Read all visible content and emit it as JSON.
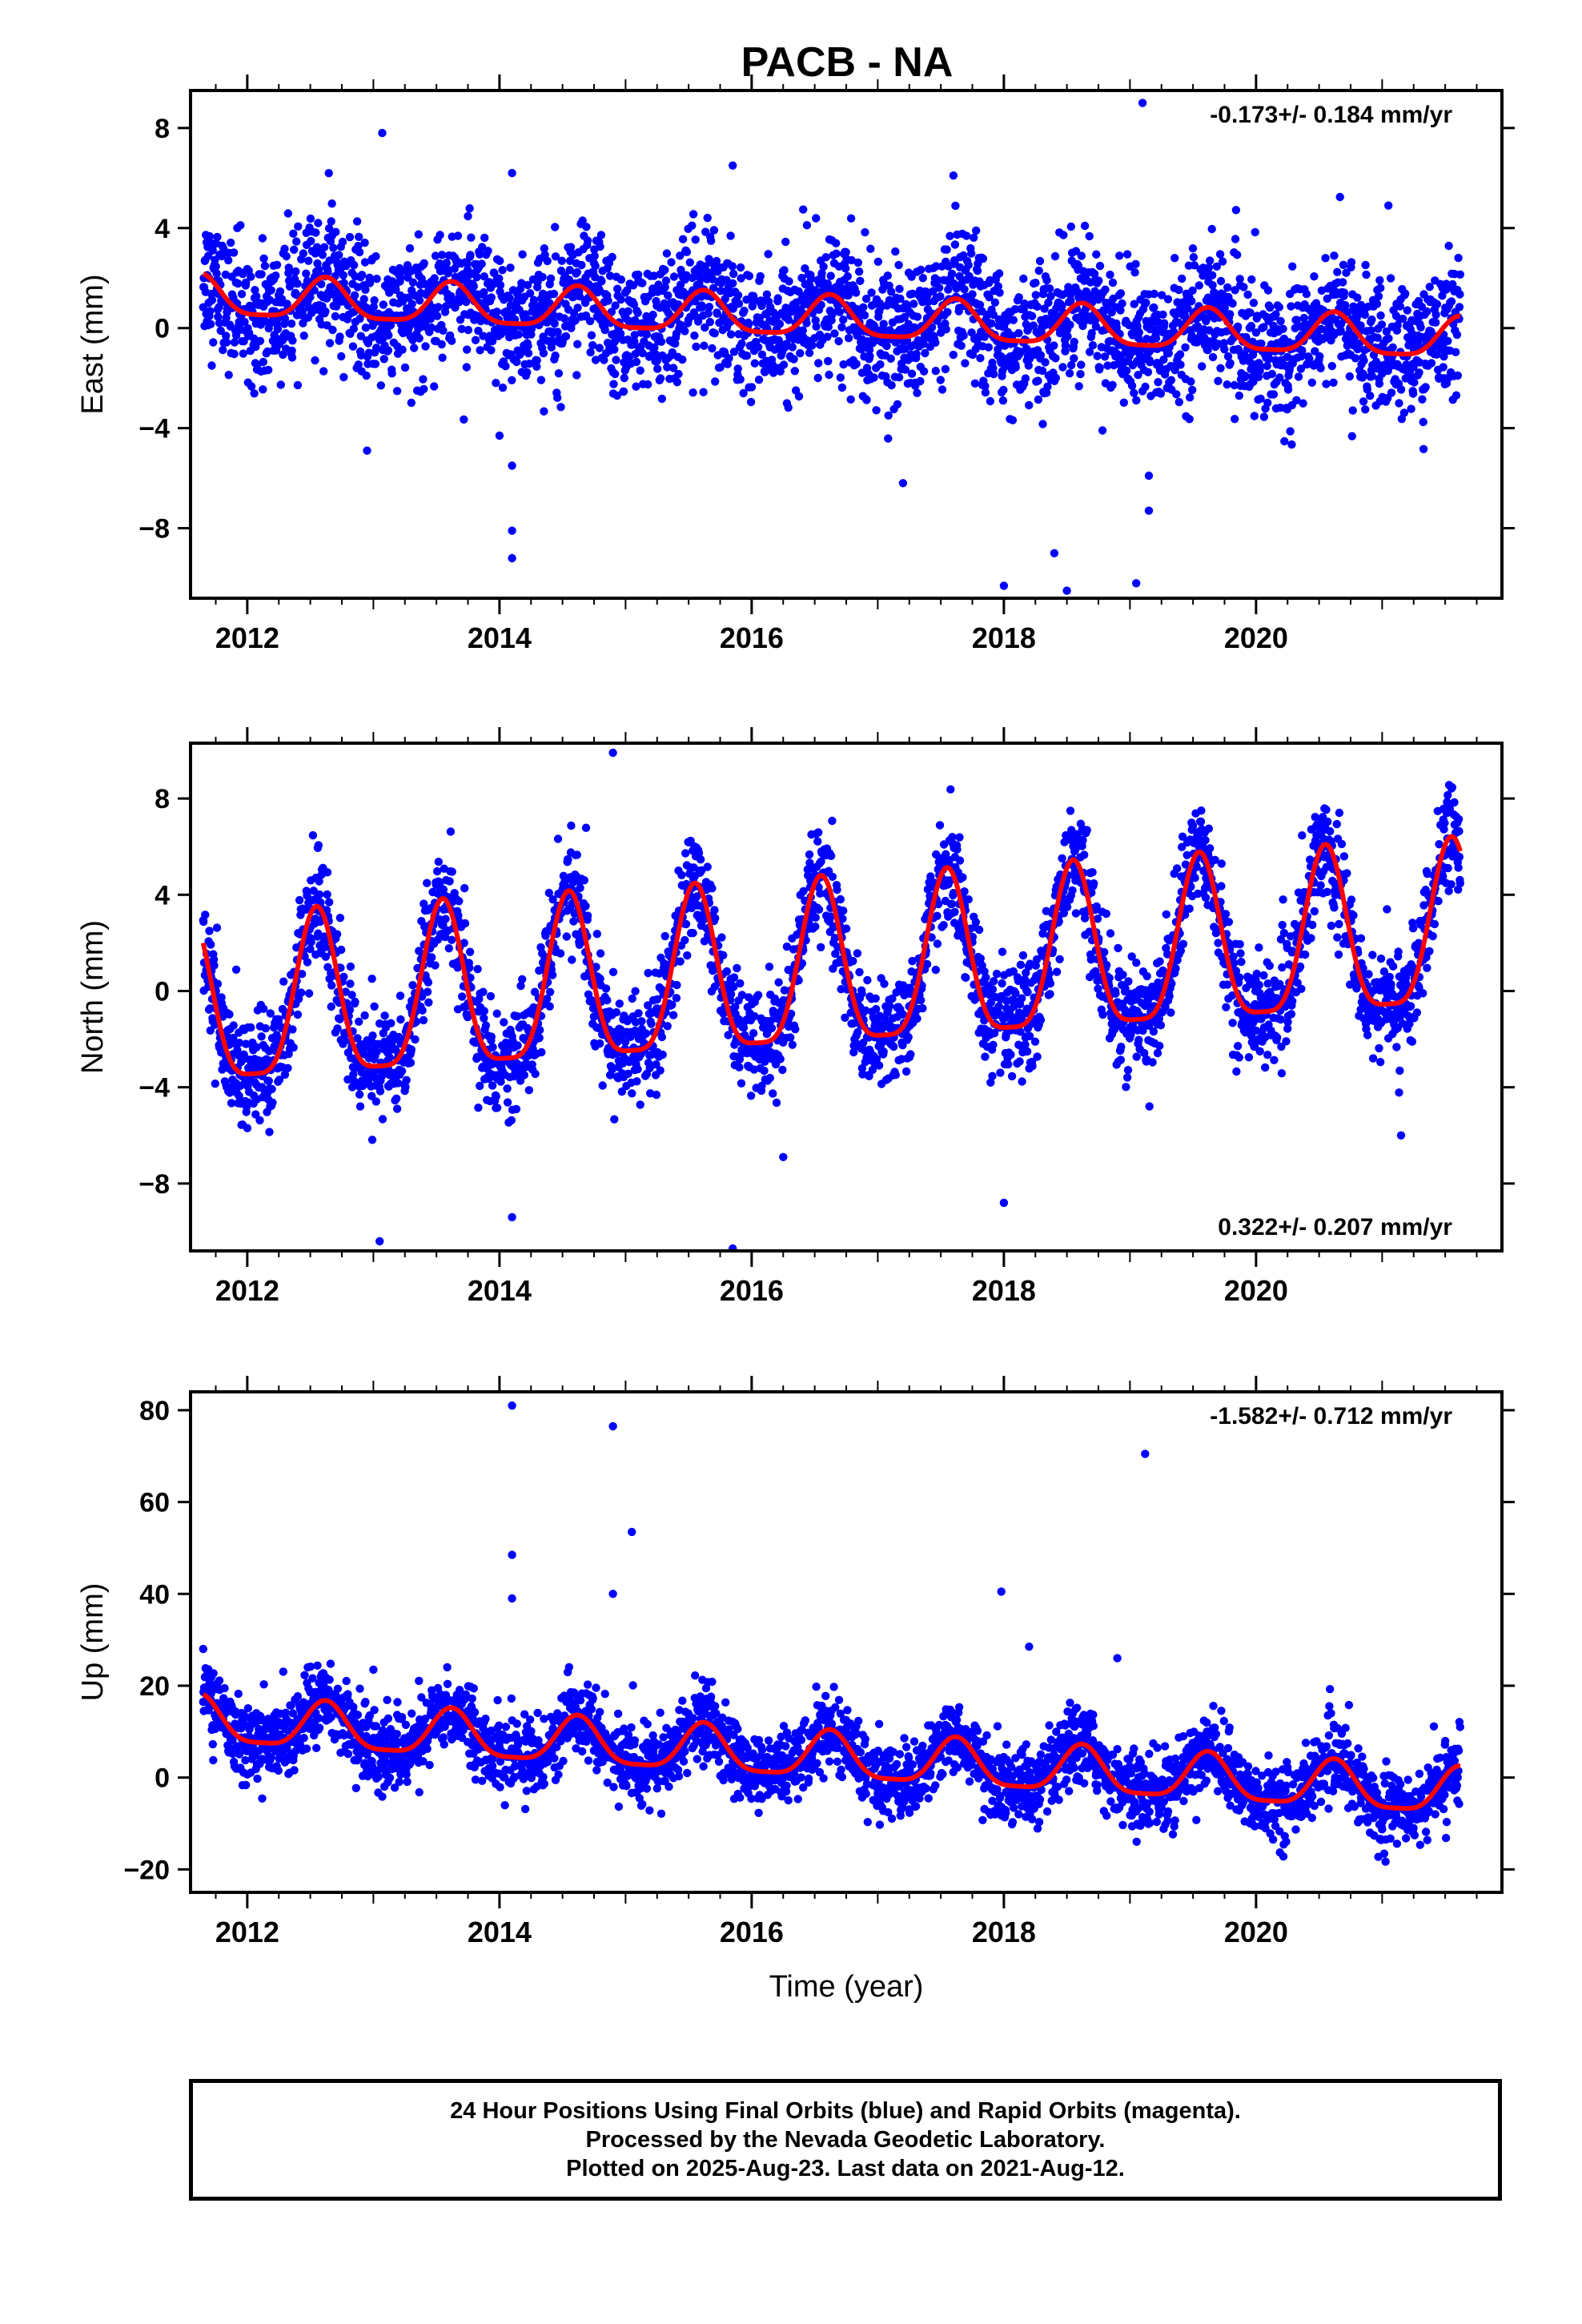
{
  "title": "PACB - NA",
  "colors": {
    "points": "#0000ff",
    "fit": "#ff0000",
    "frame": "#000000"
  },
  "chart_data": [
    {
      "type": "scatter",
      "panel": "east",
      "ylabel": "East (mm)",
      "xlim": [
        2011.55,
        2021.95
      ],
      "ylim": [
        -10.8,
        9.5
      ],
      "yticks": [
        -8,
        -4,
        0,
        4,
        8
      ],
      "yticklabels": [
        "−8",
        "−4",
        "0",
        "4",
        "8"
      ],
      "xticks": [
        2012,
        2014,
        2016,
        2018,
        2020
      ],
      "xticklabels": [
        "2012",
        "2014",
        "2016",
        "2018",
        "2020"
      ],
      "rate_label": "-0.173+/- 0.184 mm/yr",
      "rate_position": "top-right",
      "series": [
        {
          "values_note": ""
        }
      ],
      "trend_mm_per_yr": -0.173,
      "seasonal": {
        "mean_at_2011_7": 1.2,
        "annual_amp": 0.8,
        "annual_phase_peak": 0.62,
        "noise_sd": 1.3
      },
      "outliers": [
        [
          2013.07,
          7.8
        ],
        [
          2014.1,
          6.2
        ],
        [
          2015.85,
          6.5
        ],
        [
          2017.6,
          6.1
        ],
        [
          2019.1,
          9.0
        ],
        [
          2021.05,
          4.9
        ],
        [
          2014.1,
          -9.2
        ],
        [
          2014.1,
          -8.1
        ],
        [
          2014.1,
          -5.5
        ],
        [
          2014.0,
          -4.3
        ],
        [
          2012.95,
          -4.9
        ],
        [
          2017.2,
          -6.2
        ],
        [
          2018.0,
          -10.3
        ],
        [
          2018.4,
          -9.0
        ],
        [
          2018.5,
          -10.5
        ],
        [
          2019.05,
          -10.2
        ],
        [
          2019.15,
          -5.9
        ],
        [
          2019.15,
          -7.3
        ]
      ]
    },
    {
      "type": "scatter",
      "panel": "north",
      "ylabel": "North (mm)",
      "xlim": [
        2011.55,
        2021.95
      ],
      "ylim": [
        -10.8,
        10.3
      ],
      "yticks": [
        -8,
        -4,
        0,
        4,
        8
      ],
      "yticklabels": [
        "−8",
        "−4",
        "0",
        "4",
        "8"
      ],
      "xticks": [
        2012,
        2014,
        2016,
        2018,
        2020
      ],
      "xticklabels": [
        "2012",
        "2014",
        "2016",
        "2018",
        "2020"
      ],
      "rate_label": "0.322+/- 0.207 mm/yr",
      "rate_position": "bottom-right",
      "trend_mm_per_yr": 0.322,
      "seasonal": {
        "mean_at_2011_7": -1.0,
        "annual_amp": 3.4,
        "annual_phase_peak": 0.55,
        "noise_sd": 1.1
      },
      "outliers": [
        [
          2014.9,
          9.9
        ],
        [
          2013.05,
          -10.4
        ],
        [
          2015.85,
          -10.7
        ],
        [
          2018.0,
          -8.8
        ],
        [
          2014.1,
          -9.4
        ],
        [
          2016.25,
          -6.9
        ],
        [
          2021.15,
          -6.0
        ]
      ]
    },
    {
      "type": "scatter",
      "panel": "up",
      "ylabel": "Up (mm)",
      "xlim": [
        2011.55,
        2021.95
      ],
      "ylim": [
        -25,
        84
      ],
      "yticks": [
        -20,
        0,
        20,
        40,
        60,
        80
      ],
      "yticklabels": [
        "−20",
        "0",
        "20",
        "40",
        "60",
        "80"
      ],
      "xticks": [
        2012,
        2014,
        2016,
        2018,
        2020
      ],
      "xticklabels": [
        "2012",
        "2014",
        "2016",
        "2018",
        "2020"
      ],
      "xlabel": "Time (year)",
      "rate_label": "-1.582+/- 0.712 mm/yr",
      "rate_position": "top-right",
      "trend_mm_per_yr": -1.582,
      "seasonal": {
        "mean_at_2011_7": 12.0,
        "annual_amp": 5.0,
        "annual_phase_peak": 0.62,
        "noise_sd": 4.0
      },
      "outliers": [
        [
          2014.1,
          81
        ],
        [
          2014.1,
          48.5
        ],
        [
          2014.1,
          39
        ],
        [
          2014.9,
          76.5
        ],
        [
          2014.9,
          40
        ],
        [
          2015.05,
          53.5
        ],
        [
          2017.98,
          40.5
        ],
        [
          2018.2,
          28.5
        ],
        [
          2018.9,
          26
        ],
        [
          2019.12,
          70.5
        ],
        [
          2011.65,
          28
        ],
        [
          2013.0,
          23.5
        ]
      ]
    }
  ],
  "caption": [
    "24 Hour Positions Using Final Orbits (blue) and Rapid Orbits (magenta).",
    "Processed by the Nevada Geodetic Laboratory.",
    "Plotted on 2025-Aug-23. Last data on 2021-Aug-12."
  ]
}
